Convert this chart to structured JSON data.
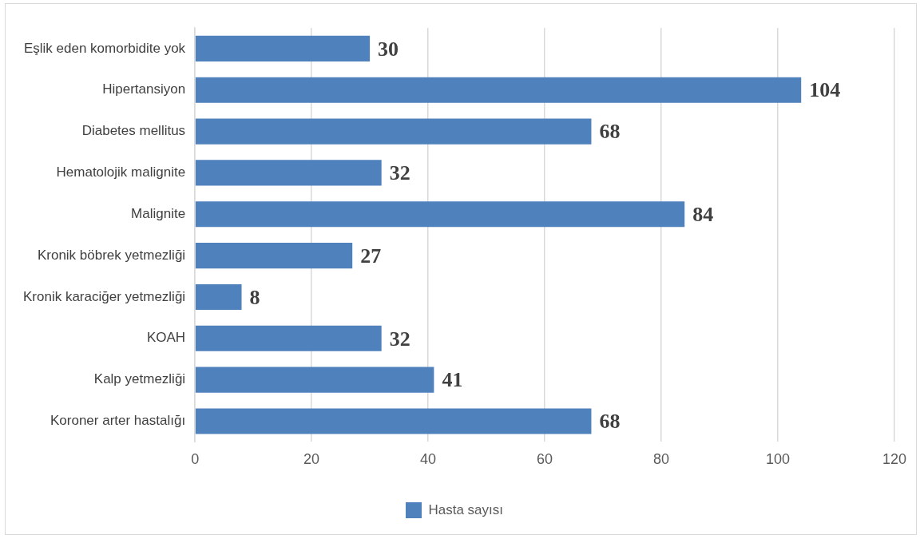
{
  "chart_data": {
    "type": "bar",
    "orientation": "horizontal",
    "categories": [
      "Eşlik eden komorbidite yok",
      "Hipertansiyon",
      "Diabetes mellitus",
      "Hematolojik malignite",
      "Malignite",
      "Kronik böbrek yetmezliği",
      "Kronik karaciğer yetmezliği",
      "KOAH",
      "Kalp yetmezliği",
      "Koroner arter hastalığı"
    ],
    "series": [
      {
        "name": "Hasta sayısı",
        "color": "#4f81bd",
        "values": [
          30,
          104,
          68,
          32,
          84,
          27,
          8,
          32,
          41,
          68
        ]
      }
    ],
    "xlim": [
      0,
      120
    ],
    "xticks": [
      0,
      20,
      40,
      60,
      80,
      100,
      120
    ],
    "grid": "x",
    "legend": "bottom",
    "data_labels": true
  }
}
